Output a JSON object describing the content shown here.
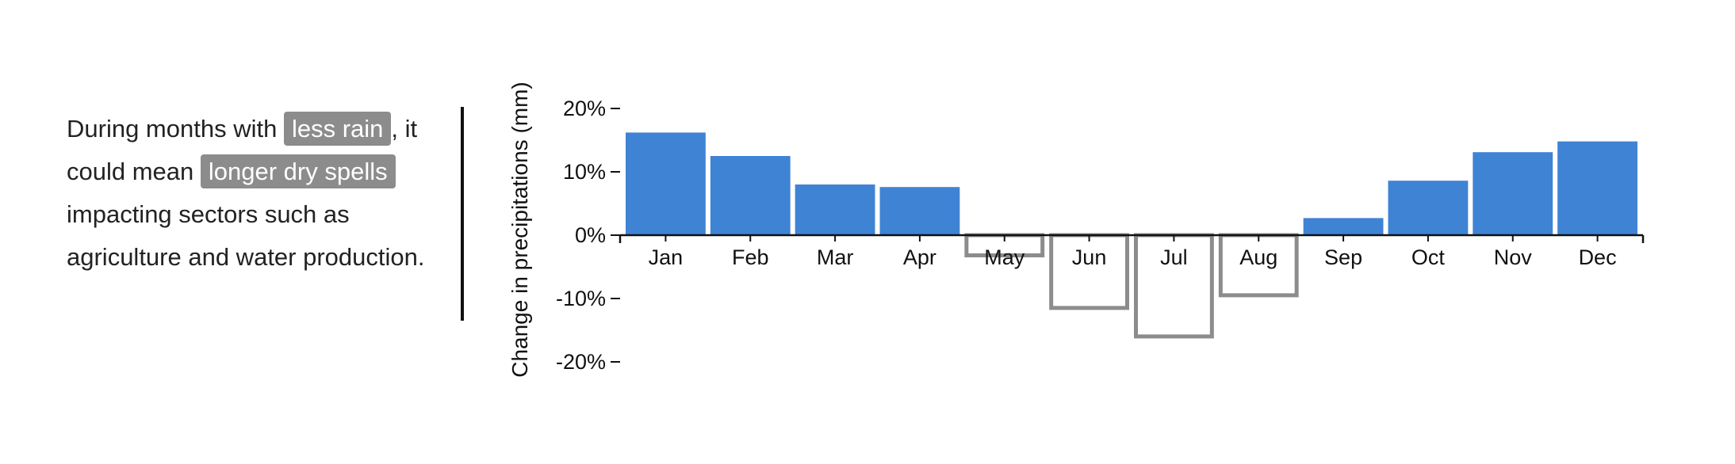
{
  "caption": {
    "before": "During months with ",
    "highlight1": "less rain",
    "middle1": ", it could mean ",
    "highlight2": "longer dry spells",
    "after": " impacting sectors such as agriculture and water production."
  },
  "colors": {
    "positive_bar": "#3f83d4",
    "negative_outline": "#8c8c8c",
    "highlight_background": "#8c8c8c",
    "axis": "#111111"
  },
  "chart_data": {
    "type": "bar",
    "title": "",
    "ylabel": "Change in precipitations (mm)",
    "xlabel": "",
    "categories": [
      "Jan",
      "Feb",
      "Mar",
      "Apr",
      "May",
      "Jun",
      "Jul",
      "Aug",
      "Sep",
      "Oct",
      "Nov",
      "Dec"
    ],
    "values": [
      16.2,
      12.5,
      8.0,
      7.6,
      -3.5,
      -11.8,
      -16.3,
      -9.8,
      2.7,
      8.6,
      13.1,
      14.8
    ],
    "ylim": [
      -20,
      20
    ],
    "yticks": [
      20,
      10,
      0,
      -10,
      -20
    ],
    "ytick_labels": [
      "20%",
      "10%",
      "0%",
      "-10%",
      "-20%"
    ],
    "positive_style": "filled",
    "negative_style": "outline",
    "grid": false
  }
}
